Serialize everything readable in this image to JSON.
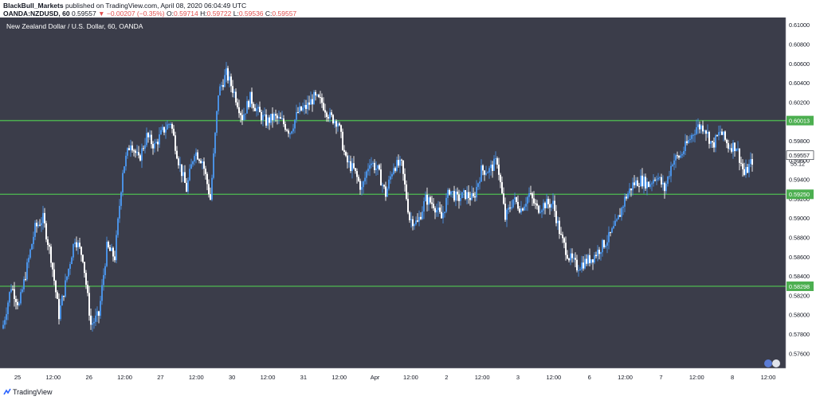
{
  "header": {
    "publisher": "BlackBull_Markets",
    "published_text": "published on TradingView.com, April 08, 2020 06:04:49 UTC",
    "symbol": "OANDA:NZDUSD, 60",
    "last": "0.59557",
    "change": "▼ −0.00207 (−0.35%)",
    "o_label": "O:",
    "o_val": "0.59714",
    "h_label": "H:",
    "h_val": "0.59722",
    "l_label": "L:",
    "l_val": "0.59536",
    "c_label": "C:",
    "c_val": "0.59557"
  },
  "footer": {
    "brand": "TradingView"
  },
  "colors": {
    "background": "#3b3d4a",
    "candle_up": "#4a90e2",
    "candle_down": "#ffffff",
    "level_line": "#4caf50",
    "axis_bg": "#ffffff"
  },
  "chart_data": {
    "type": "candlestick",
    "title": "New Zealand Dollar / U.S. Dollar, 60, OANDA",
    "ylim": [
      0.5745,
      0.6108
    ],
    "y_ticks": [
      "0.61000",
      "0.60800",
      "0.60600",
      "0.60400",
      "0.60200",
      "0.59800",
      "0.59600",
      "0.59400",
      "0.59200",
      "0.59000",
      "0.58800",
      "0.58600",
      "0.58400",
      "0.58200",
      "0.58000",
      "0.57800",
      "0.57600"
    ],
    "x_ticks": [
      "25",
      "12:00",
      "26",
      "12:00",
      "27",
      "12:00",
      "30",
      "12:00",
      "31",
      "12:00",
      "Apr",
      "12:00",
      "2",
      "12:00",
      "3",
      "12:00",
      "6",
      "12:00",
      "7",
      "12:00",
      "8",
      "12:00"
    ],
    "levels": [
      {
        "price": 0.60013,
        "label": "0.60013"
      },
      {
        "price": 0.5925,
        "label": "0.59250"
      },
      {
        "price": 0.58298,
        "label": "0.58298"
      }
    ],
    "last_price": {
      "label": "0.59557",
      "countdown": "55:12"
    },
    "anchors": [
      0.579,
      0.583,
      0.581,
      0.585,
      0.589,
      0.59,
      0.586,
      0.58,
      0.584,
      0.588,
      0.586,
      0.579,
      0.58,
      0.587,
      0.586,
      0.595,
      0.598,
      0.596,
      0.5985,
      0.5975,
      0.599,
      0.6,
      0.596,
      0.593,
      0.597,
      0.596,
      0.592,
      0.603,
      0.605,
      0.603,
      0.6005,
      0.6025,
      0.601,
      0.6,
      0.6005,
      0.6,
      0.599,
      0.601,
      0.6015,
      0.6025,
      0.602,
      0.6005,
      0.6,
      0.596,
      0.595,
      0.593,
      0.596,
      0.595,
      0.5925,
      0.5955,
      0.5955,
      0.59,
      0.5895,
      0.592,
      0.5915,
      0.59,
      0.593,
      0.592,
      0.5925,
      0.592,
      0.595,
      0.595,
      0.596,
      0.59,
      0.592,
      0.591,
      0.5925,
      0.591,
      0.5915,
      0.5915,
      0.588,
      0.586,
      0.585,
      0.5855,
      0.586,
      0.587,
      0.588,
      0.5895,
      0.592,
      0.5935,
      0.594,
      0.5935,
      0.5945,
      0.593,
      0.596,
      0.5965,
      0.598,
      0.5995,
      0.5995,
      0.5975,
      0.599,
      0.5975,
      0.5975,
      0.5945,
      0.596
    ]
  }
}
